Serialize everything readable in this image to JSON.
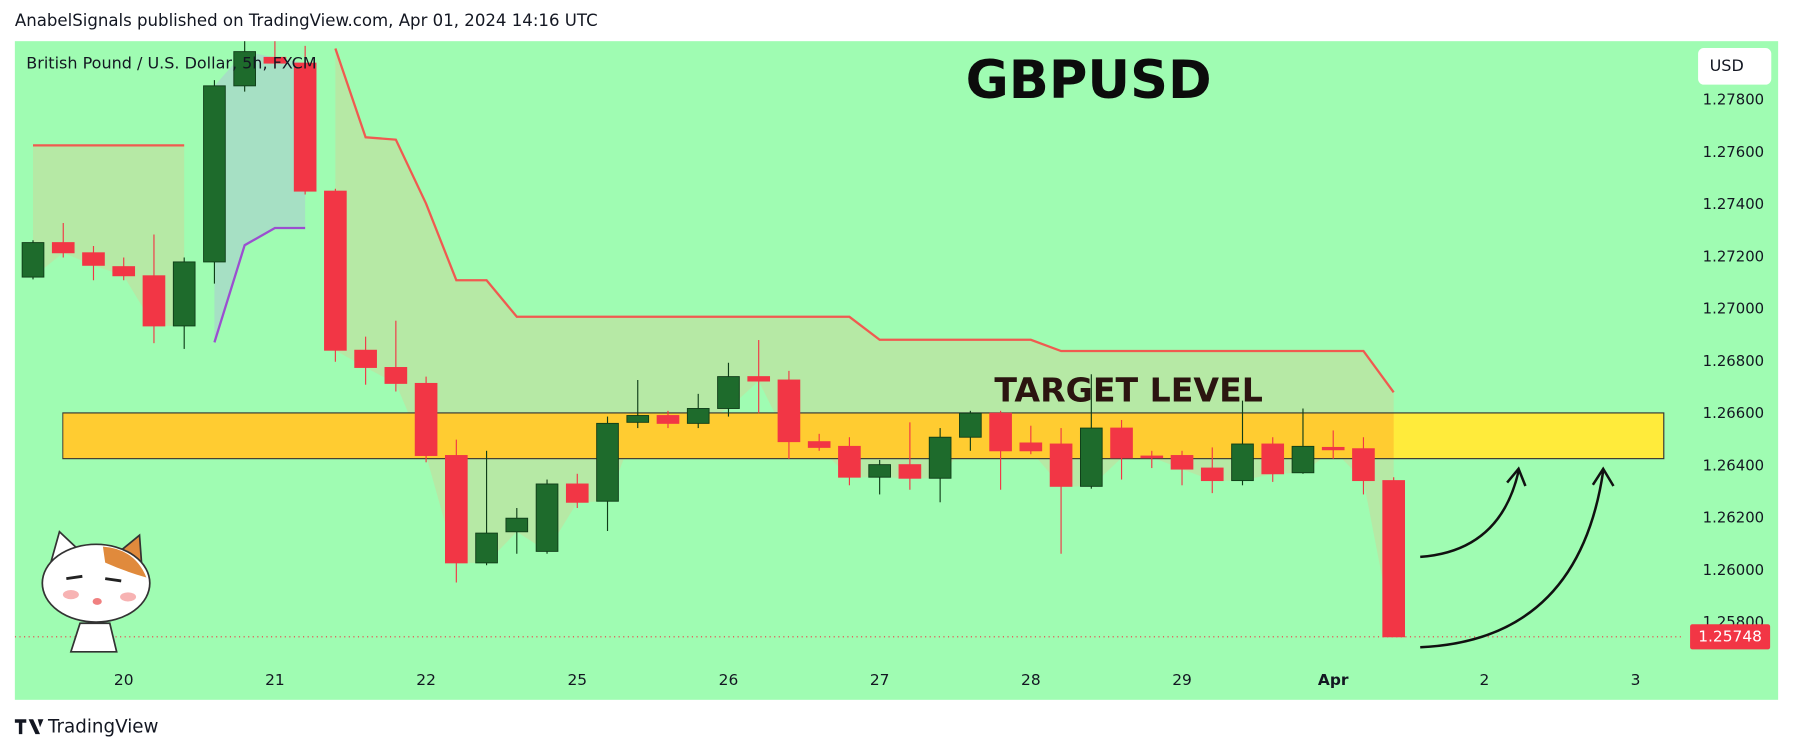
{
  "header": "AnabelSignals published on TradingView.com, Apr 01, 2024 14:16 UTC",
  "footer": "TradingView",
  "chart_data": {
    "type": "candlestick",
    "title": "GBPUSD",
    "subtitle": "British Pound / U.S. Dollar, 5h, FXCM",
    "annotation": "TARGET LEVEL",
    "currency": "USD",
    "up_color": "#1e6b2c",
    "down_color": "#f23645",
    "open": [
      1.27125,
      1.27257,
      1.27218,
      1.27165,
      1.2713,
      1.26938,
      1.27183,
      1.27857,
      1.27966,
      1.27944,
      1.27454,
      1.26845,
      1.26779,
      1.26718,
      1.26442,
      1.26031,
      1.2615,
      1.26075,
      1.26333,
      1.26267,
      1.26569,
      1.26595,
      1.26565,
      1.26622,
      1.26744,
      1.26731,
      1.26495,
      1.26477,
      1.26359,
      1.26407,
      1.26355,
      1.26512,
      1.26604,
      1.2649,
      1.26486,
      1.26324,
      1.26547,
      1.2644,
      1.26442,
      1.26394,
      1.26346,
      1.26486,
      1.26376,
      1.26473,
      1.26468,
      1.26346
    ],
    "high": [
      1.27266,
      1.27332,
      1.27244,
      1.272,
      1.27288,
      1.272,
      1.27879,
      1.28028,
      1.28028,
      1.2801,
      1.27463,
      1.26897,
      1.26958,
      1.26744,
      1.26503,
      1.2646,
      1.26241,
      1.2635,
      1.26372,
      1.26591,
      1.26731,
      1.26613,
      1.26678,
      1.26797,
      1.26884,
      1.26766,
      1.26525,
      1.26512,
      1.26425,
      1.26569,
      1.26547,
      1.26613,
      1.26613,
      1.26556,
      1.26547,
      1.26753,
      1.26578,
      1.2646,
      1.2646,
      1.26473,
      1.26652,
      1.26512,
      1.26622,
      1.26538,
      1.26512,
      1.26359
    ],
    "low": [
      1.27116,
      1.272,
      1.27113,
      1.27113,
      1.26872,
      1.2685,
      1.271,
      1.27835,
      1.27923,
      1.27441,
      1.26801,
      1.26713,
      1.26687,
      1.26416,
      1.25956,
      1.26022,
      1.26066,
      1.26066,
      1.26241,
      1.26153,
      1.26547,
      1.26547,
      1.26547,
      1.26591,
      1.26604,
      1.26429,
      1.2646,
      1.26328,
      1.26293,
      1.26311,
      1.26263,
      1.2646,
      1.26311,
      1.26447,
      1.26066,
      1.26315,
      1.2635,
      1.26394,
      1.26328,
      1.26298,
      1.26328,
      1.26341,
      1.26372,
      1.26429,
      1.26293,
      1.25748
    ],
    "close": [
      1.27257,
      1.27218,
      1.2717,
      1.2713,
      1.26938,
      1.27183,
      1.27857,
      1.27988,
      1.27944,
      1.27454,
      1.26845,
      1.26779,
      1.26718,
      1.26442,
      1.26031,
      1.26145,
      1.26202,
      1.26333,
      1.26263,
      1.26565,
      1.26595,
      1.26565,
      1.26622,
      1.26744,
      1.26727,
      1.26495,
      1.26473,
      1.26359,
      1.26407,
      1.26355,
      1.26512,
      1.26604,
      1.2646,
      1.2646,
      1.26324,
      1.26547,
      1.26433,
      1.26436,
      1.2639,
      1.26346,
      1.26486,
      1.26372,
      1.26477,
      1.26464,
      1.26346,
      1.25748
    ],
    "overlays": [
      {
        "color": "#f05a50",
        "values": [
          1.27629,
          1.27629,
          1.27629,
          1.27629,
          1.27629,
          1.27629,
          null,
          null,
          null,
          null,
          1.28,
          1.2766,
          1.27651,
          1.27406,
          1.27113,
          1.27113,
          1.26973,
          1.26973,
          1.26973,
          1.26973,
          1.26973,
          1.26973,
          1.26973,
          1.26973,
          1.26973,
          1.26973,
          1.26973,
          1.26973,
          1.26885,
          1.26885,
          1.26885,
          1.26885,
          1.26885,
          1.26885,
          1.26842,
          1.26842,
          1.26842,
          1.26842,
          1.26842,
          1.26842,
          1.26842,
          1.26842,
          1.26842,
          1.26842,
          1.26842,
          1.26684
        ]
      },
      {
        "color": "#9b4fd0",
        "values": [
          null,
          null,
          null,
          null,
          null,
          null,
          1.26875,
          1.27247,
          1.27313,
          1.27313,
          null,
          null,
          null,
          null,
          null,
          null,
          null,
          null,
          null,
          null,
          null,
          null,
          null,
          null,
          null,
          null,
          null,
          null,
          null,
          null,
          null,
          null,
          null,
          null,
          null,
          null,
          null,
          null,
          null,
          null,
          null,
          null,
          null,
          null,
          null,
          null
        ]
      }
    ],
    "zone": {
      "low": 1.2643,
      "high": 1.26605,
      "color": "#ffeb3b"
    },
    "last_price": 1.25748,
    "ylim": [
      1.25625,
      1.28028
    ],
    "yticks": [
      {
        "value": 1.278,
        "label": "1.27800"
      },
      {
        "value": 1.276,
        "label": "1.27600"
      },
      {
        "value": 1.274,
        "label": "1.27400"
      },
      {
        "value": 1.272,
        "label": "1.27200"
      },
      {
        "value": 1.27,
        "label": "1.27000"
      },
      {
        "value": 1.268,
        "label": "1.26800"
      },
      {
        "value": 1.266,
        "label": "1.26600"
      },
      {
        "value": 1.264,
        "label": "1.26400"
      },
      {
        "value": 1.262,
        "label": "1.26200"
      },
      {
        "value": 1.26,
        "label": "1.26000"
      },
      {
        "value": 1.258,
        "label": "1.25800"
      }
    ],
    "xlim": [
      -0.6,
      54.5
    ],
    "xticks": [
      {
        "value": 3,
        "label": "20"
      },
      {
        "value": 8,
        "label": "21"
      },
      {
        "value": 13,
        "label": "22"
      },
      {
        "value": 18,
        "label": "25"
      },
      {
        "value": 23,
        "label": "26"
      },
      {
        "value": 28,
        "label": "27"
      },
      {
        "value": 33,
        "label": "28"
      },
      {
        "value": 38,
        "label": "29"
      },
      {
        "value": 43,
        "label": "Apr"
      },
      {
        "value": 48,
        "label": "2"
      },
      {
        "value": 53,
        "label": "3"
      }
    ],
    "grid": false
  }
}
